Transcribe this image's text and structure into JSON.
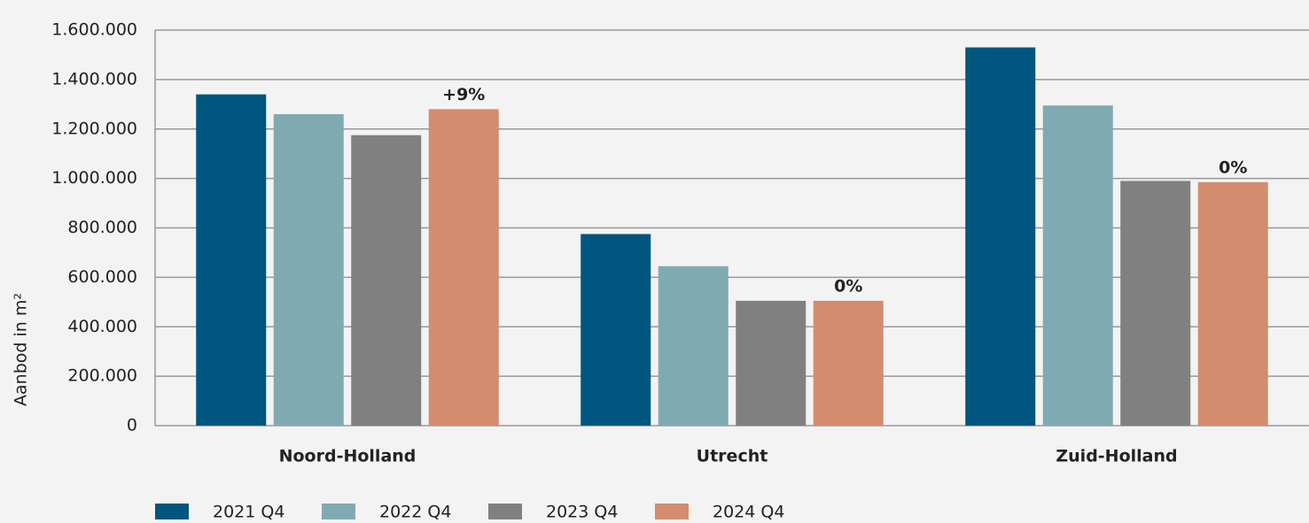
{
  "chart_data": {
    "type": "bar",
    "ylabel": "Aanbod in m²",
    "categories": [
      "Noord-Holland",
      "Utrecht",
      "Zuid-Holland"
    ],
    "series": [
      {
        "name": "2021 Q4",
        "color": "#00567e",
        "values": [
          1340000,
          775000,
          1530000
        ]
      },
      {
        "name": "2022 Q4",
        "color": "#80aab2",
        "values": [
          1260000,
          645000,
          1295000
        ]
      },
      {
        "name": "2023 Q4",
        "color": "#808080",
        "values": [
          1175000,
          505000,
          990000
        ]
      },
      {
        "name": "2024 Q4",
        "color": "#d48c6e",
        "values": [
          1280000,
          505000,
          985000
        ],
        "annotations": [
          "+9%",
          "0%",
          "0%"
        ]
      }
    ],
    "ylim": [
      0,
      1600000
    ],
    "yticks": [
      0,
      {
        "value": 200000,
        "label": "200.000"
      },
      {
        "value": 400000,
        "label": "400.000"
      },
      {
        "value": 600000,
        "label": "600.000"
      },
      {
        "value": 800000,
        "label": "800.000"
      },
      {
        "value": 1000000,
        "label": "1.000.000"
      },
      {
        "value": 1200000,
        "label": "1.200.000"
      },
      {
        "value": 1400000,
        "label": "1.400.000"
      },
      {
        "value": 1600000,
        "label": "1.600.000"
      }
    ],
    "grid": true
  }
}
